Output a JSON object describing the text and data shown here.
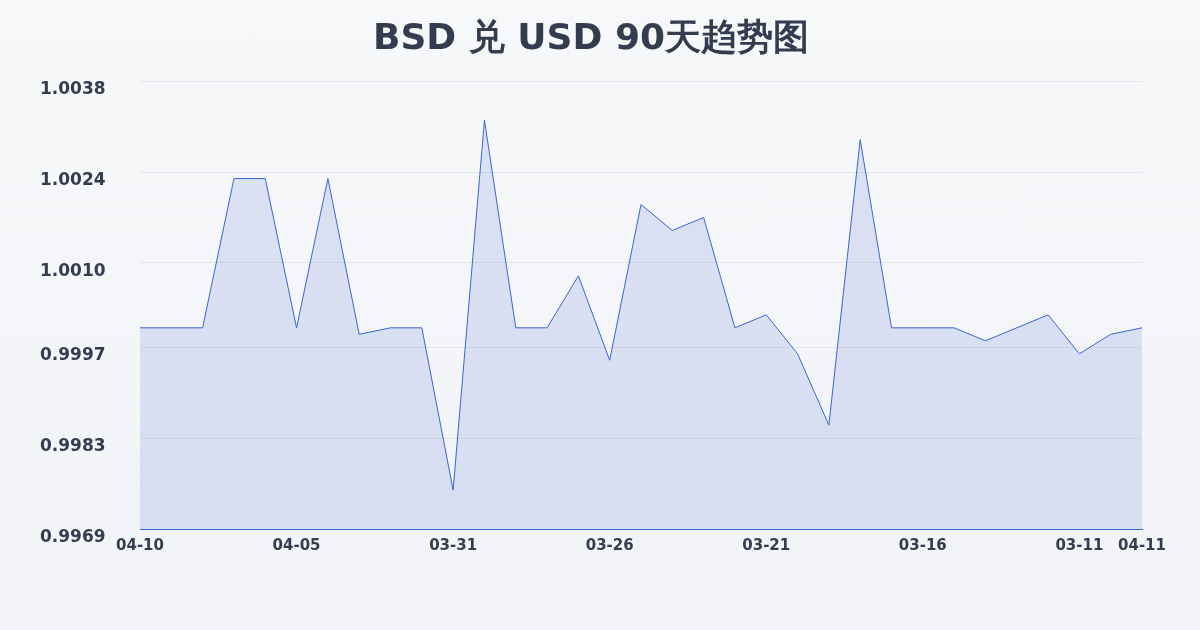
{
  "chart_data": {
    "type": "area",
    "title": "BSD 兑 USD 90天趋势图",
    "categories": [
      "04-10",
      null,
      null,
      null,
      null,
      "04-05",
      null,
      null,
      null,
      null,
      "03-31",
      null,
      null,
      null,
      null,
      "03-26",
      null,
      null,
      null,
      null,
      "03-21",
      null,
      null,
      null,
      null,
      "03-16",
      null,
      null,
      null,
      null,
      "03-11",
      null,
      "04-11"
    ],
    "series": [
      {
        "color": "#3a66d0",
        "values": [
          1.0,
          1.0,
          1.0,
          1.0023,
          1.0023,
          1.0,
          1.0023,
          0.9999,
          1.0,
          1.0,
          0.9975,
          1.0032,
          1.0,
          1.0,
          1.0008,
          0.9995,
          1.0019,
          1.0015,
          1.0017,
          1.0,
          1.0002,
          0.9996,
          0.9985,
          1.0029,
          1.0,
          1.0,
          1.0,
          0.9998,
          1.0,
          1.0002,
          0.9996,
          0.9999,
          1.0
        ]
      }
    ],
    "ylim": [
      0.9969,
      1.0038
    ],
    "yticks": [
      0.9969,
      0.9983,
      0.9997,
      {
        "value": 1.001,
        "label": "1.0010"
      },
      1.0024,
      1.0038
    ],
    "grid": "y",
    "legend": false,
    "marker": "none",
    "line_style": "solid"
  }
}
